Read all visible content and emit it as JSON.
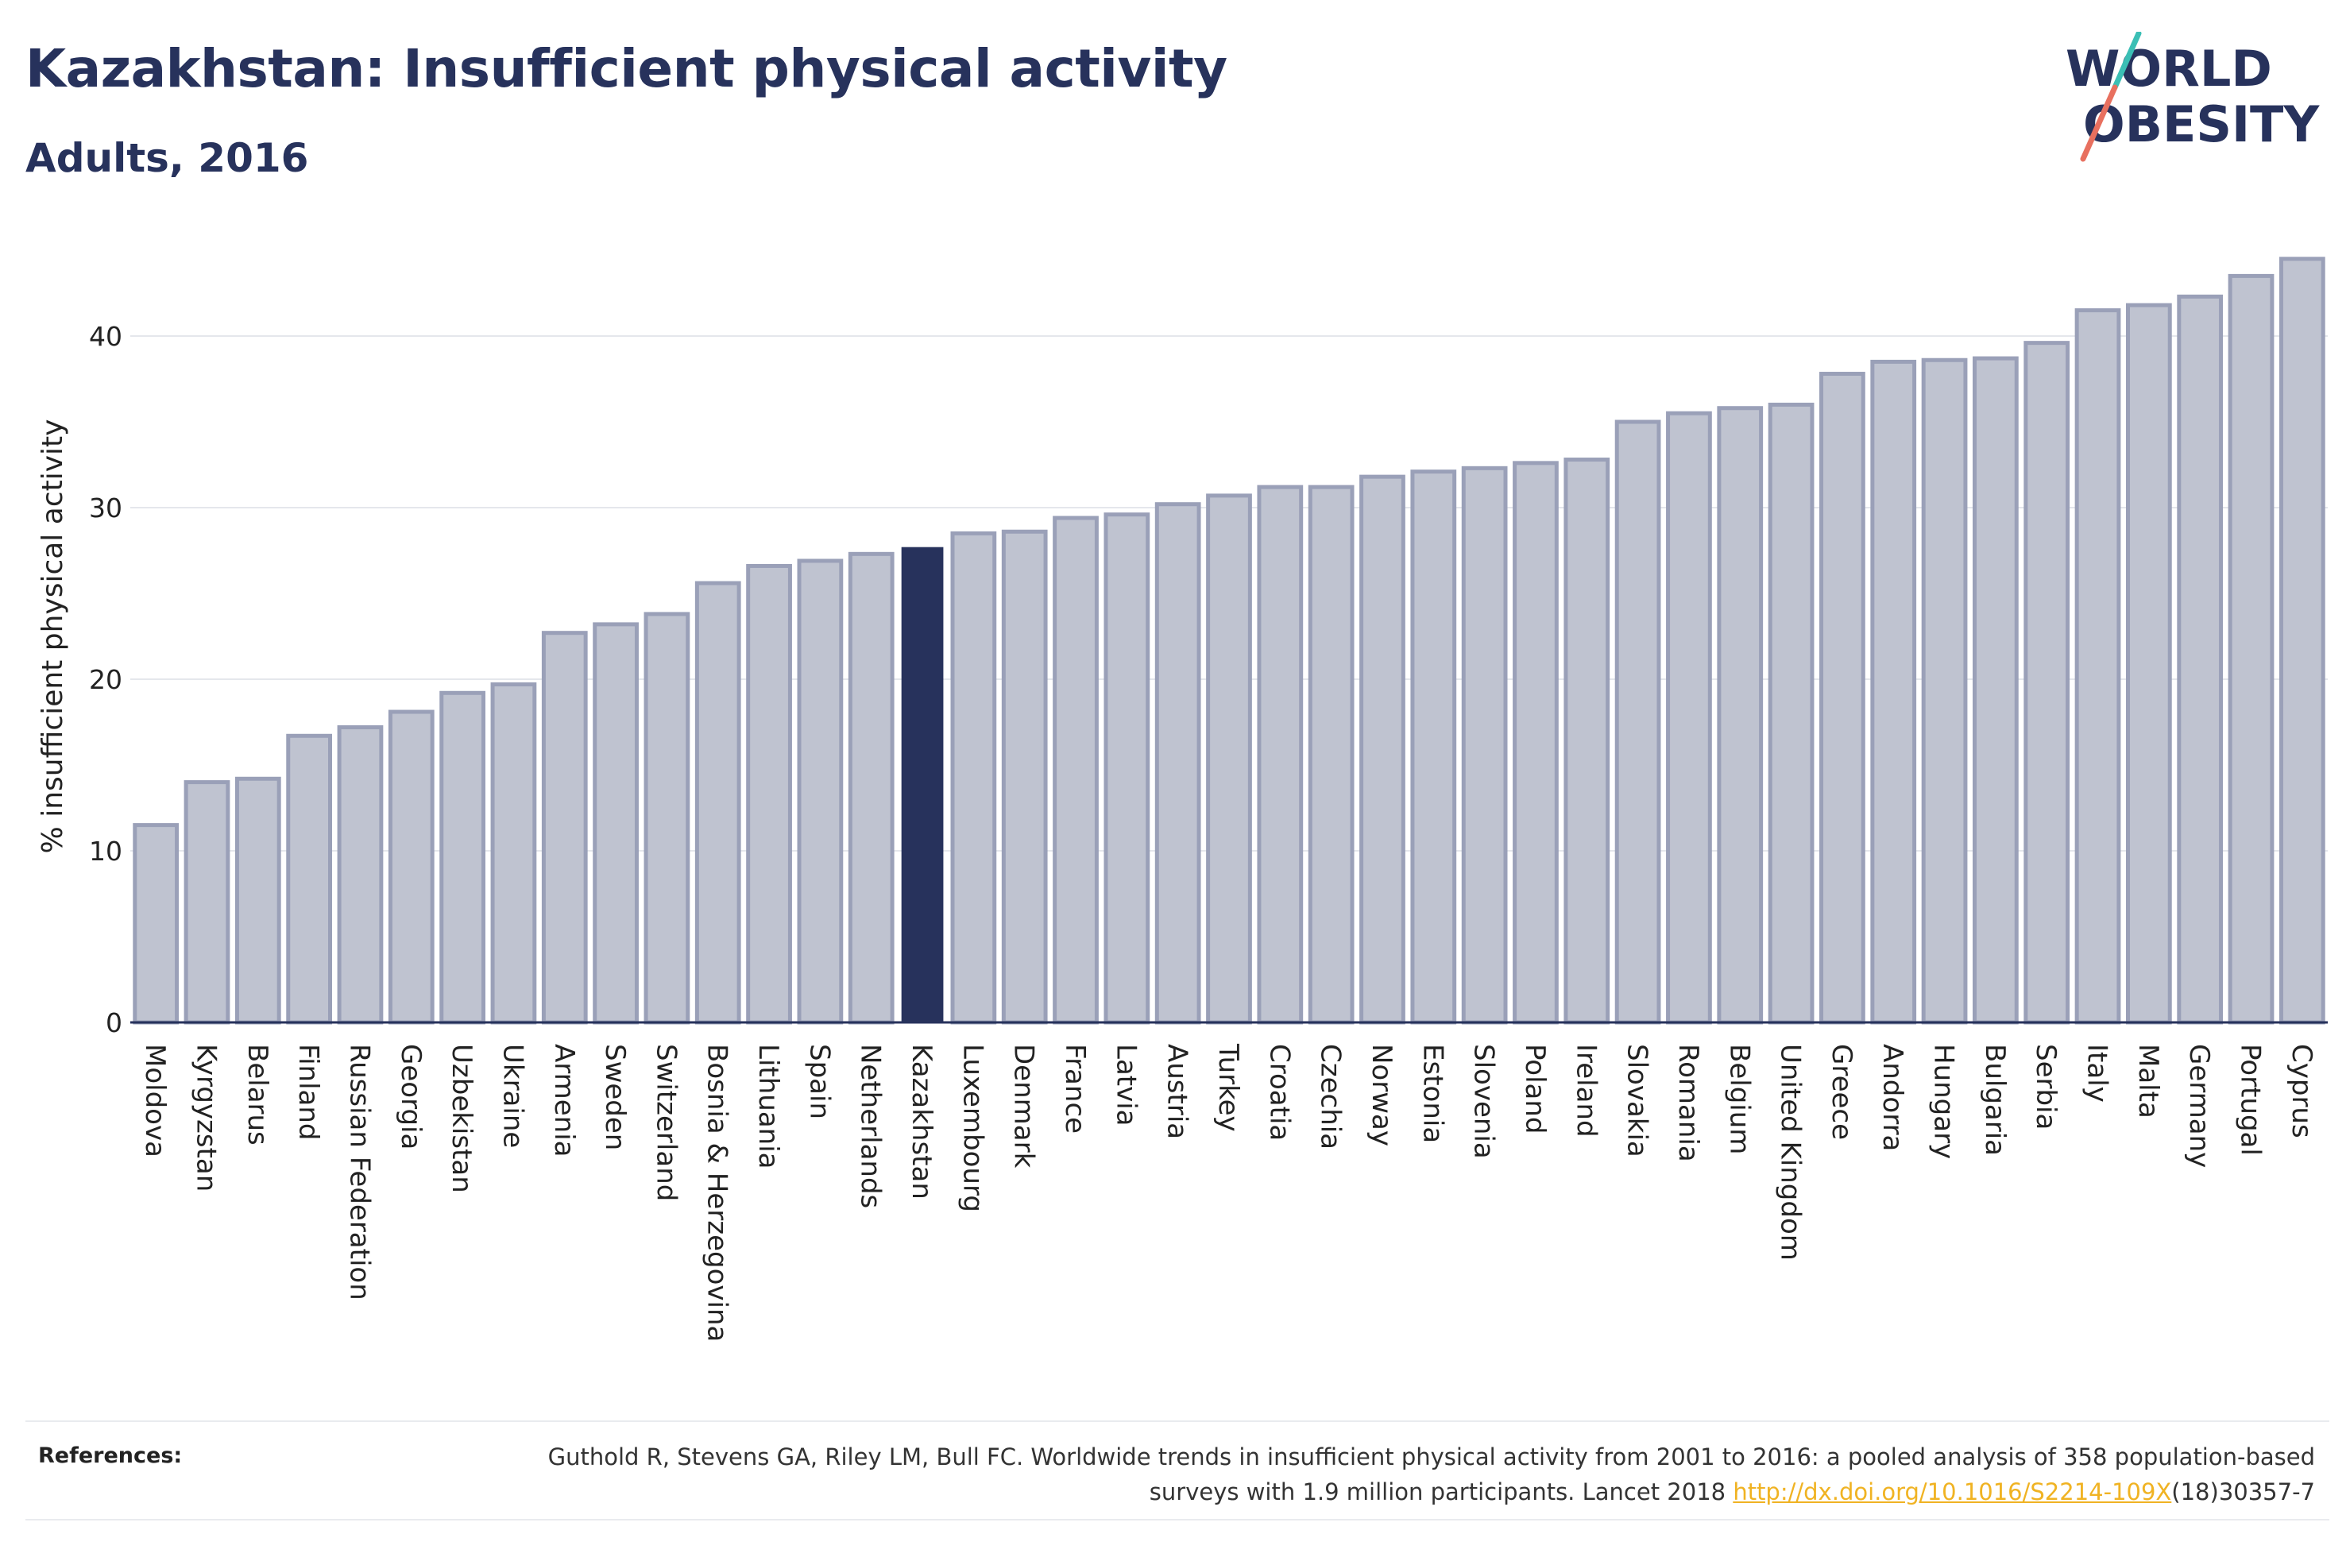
{
  "header": {
    "title": "Kazakhstan: Insufficient physical activity",
    "subtitle": "Adults, 2016"
  },
  "logo": {
    "line1": "WORLD",
    "line2": "OBESITY",
    "colors": {
      "text": "#27325c",
      "slash_teal": "#3bbfb5",
      "slash_coral": "#e8705f"
    }
  },
  "chart_data": {
    "type": "bar",
    "ylabel": "% insufficient physical activity",
    "xlabel": "",
    "ylim": [
      0,
      45
    ],
    "yticks": [
      0,
      10,
      20,
      30,
      40
    ],
    "grid": true,
    "highlight": "Kazakhstan",
    "colors": {
      "bar_fill": "#bfc3d0",
      "bar_stroke": "#9aa0b8",
      "highlight": "#27325c",
      "grid": "#e5e7ec"
    },
    "categories": [
      "Moldova",
      "Kyrgyzstan",
      "Belarus",
      "Finland",
      "Russian Federation",
      "Georgia",
      "Uzbekistan",
      "Ukraine",
      "Armenia",
      "Sweden",
      "Switzerland",
      "Bosnia & Herzegovina",
      "Lithuania",
      "Spain",
      "Netherlands",
      "Kazakhstan",
      "Luxembourg",
      "Denmark",
      "France",
      "Latvia",
      "Austria",
      "Turkey",
      "Croatia",
      "Czechia",
      "Norway",
      "Estonia",
      "Slovenia",
      "Poland",
      "Ireland",
      "Slovakia",
      "Romania",
      "Belgium",
      "United Kingdom",
      "Greece",
      "Andorra",
      "Hungary",
      "Bulgaria",
      "Serbia",
      "Italy",
      "Malta",
      "Germany",
      "Portugal",
      "Cyprus"
    ],
    "values": [
      11.5,
      14.0,
      14.2,
      16.7,
      17.2,
      18.1,
      19.2,
      19.7,
      22.7,
      23.2,
      23.8,
      25.6,
      26.6,
      26.9,
      27.3,
      27.7,
      28.5,
      28.6,
      29.4,
      29.6,
      30.2,
      30.7,
      31.2,
      31.2,
      31.8,
      32.1,
      32.3,
      32.6,
      32.8,
      35.0,
      35.5,
      35.8,
      36.0,
      37.8,
      38.5,
      38.6,
      38.7,
      39.6,
      41.5,
      41.8,
      42.3,
      43.5,
      44.5
    ]
  },
  "references": {
    "label": "References:",
    "text_before_link": "Guthold R, Stevens GA, Riley LM, Bull FC. Worldwide trends in insufficient physical activity from 2001 to 2016: a pooled analysis of 358 population-based surveys with 1.9 million participants. Lancet 2018 ",
    "link_text": "http://dx.doi.org/10.1016/S2214-109X",
    "text_after_link": "(18)30357-7"
  }
}
